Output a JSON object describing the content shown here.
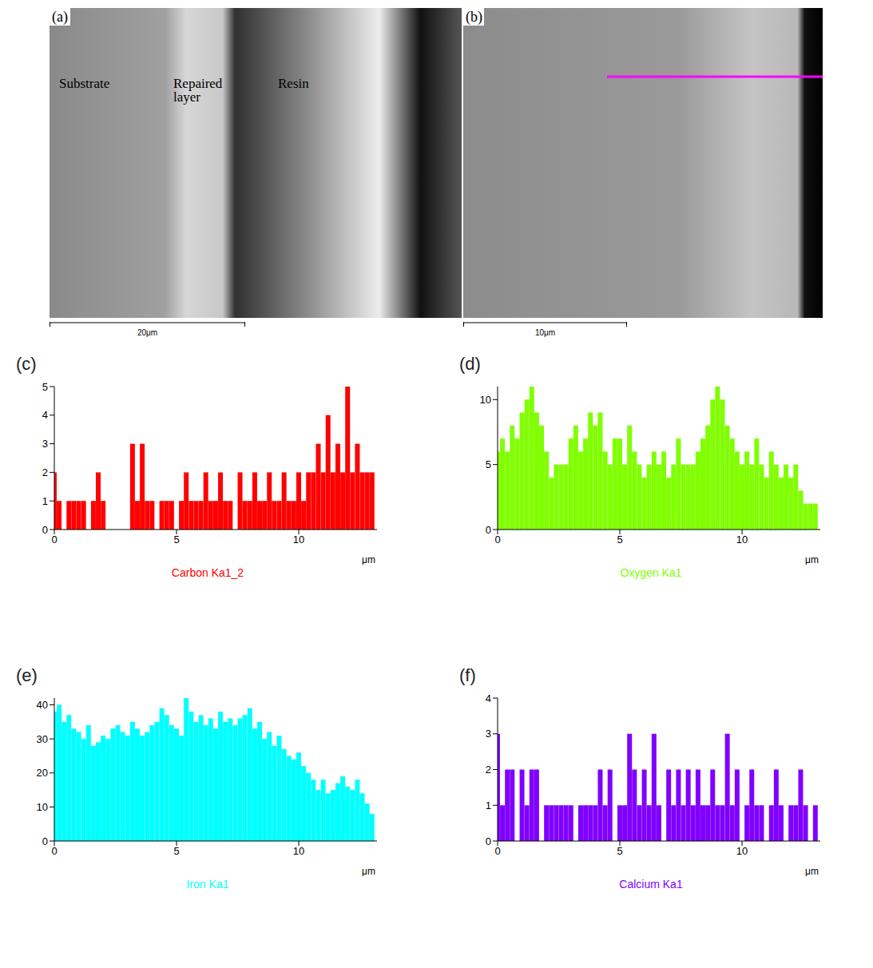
{
  "images": [
    {
      "label": "(a)",
      "regions": [
        "Substrate",
        "Repaired layer",
        "Resin"
      ],
      "scale_bar": "20μm"
    },
    {
      "label": "(b)",
      "scale_bar": "10μm"
    }
  ],
  "chart_data": [
    {
      "type": "bar",
      "label": "(c)",
      "title": "Carbon Ka1_2",
      "x_label": "μm",
      "color": "#ff0000",
      "xlim": [
        0,
        13.2
      ],
      "xticks": [
        0,
        5,
        10
      ],
      "ylim": [
        0,
        5
      ],
      "yticks": [
        0,
        1,
        2,
        3,
        4,
        5
      ],
      "x": [
        0,
        0.2,
        0.4,
        0.6,
        0.8,
        1,
        1.2,
        1.4,
        1.6,
        1.8,
        2,
        2.2,
        2.4,
        2.6,
        2.8,
        3,
        3.2,
        3.4,
        3.6,
        3.8,
        4,
        4.2,
        4.4,
        4.6,
        4.8,
        5,
        5.2,
        5.4,
        5.6,
        5.8,
        6,
        6.2,
        6.4,
        6.6,
        6.8,
        7,
        7.2,
        7.4,
        7.6,
        7.8,
        8,
        8.2,
        8.4,
        8.6,
        8.8,
        9,
        9.2,
        9.4,
        9.6,
        9.8,
        10,
        10.2,
        10.4,
        10.6,
        10.8,
        11,
        11.2,
        11.4,
        11.6,
        11.8,
        12,
        12.2,
        12.4,
        12.6,
        12.8,
        13
      ],
      "values": [
        2,
        1,
        0,
        1,
        1,
        1,
        1,
        0,
        1,
        2,
        1,
        0,
        0,
        0,
        0,
        0,
        3,
        1,
        3,
        1,
        1,
        0,
        1,
        1,
        1,
        0,
        1,
        2,
        1,
        1,
        1,
        2,
        1,
        1,
        2,
        1,
        1,
        0,
        2,
        1,
        1,
        2,
        1,
        1,
        2,
        1,
        1,
        2,
        1,
        1,
        2,
        1,
        2,
        2,
        3,
        2,
        4,
        2,
        3,
        2,
        5,
        2,
        3,
        2,
        2,
        2
      ]
    },
    {
      "type": "bar",
      "label": "(d)",
      "title": "Oxygen Ka1",
      "x_label": "μm",
      "color": "#80ff00",
      "xlim": [
        0,
        13.2
      ],
      "xticks": [
        0,
        5,
        10
      ],
      "ylim": [
        0,
        11
      ],
      "yticks": [
        0,
        5,
        10
      ],
      "x": [
        0,
        0.2,
        0.4,
        0.6,
        0.8,
        1,
        1.2,
        1.4,
        1.6,
        1.8,
        2,
        2.2,
        2.4,
        2.6,
        2.8,
        3,
        3.2,
        3.4,
        3.6,
        3.8,
        4,
        4.2,
        4.4,
        4.6,
        4.8,
        5,
        5.2,
        5.4,
        5.6,
        5.8,
        6,
        6.2,
        6.4,
        6.6,
        6.8,
        7,
        7.2,
        7.4,
        7.6,
        7.8,
        8,
        8.2,
        8.4,
        8.6,
        8.8,
        9,
        9.2,
        9.4,
        9.6,
        9.8,
        10,
        10.2,
        10.4,
        10.6,
        10.8,
        11,
        11.2,
        11.4,
        11.6,
        11.8,
        12,
        12.2,
        12.4,
        12.6,
        12.8,
        13
      ],
      "values": [
        6,
        7,
        6,
        8,
        7,
        9,
        10,
        11,
        9,
        8,
        6,
        4,
        5,
        5,
        5,
        7,
        8,
        6,
        7,
        9,
        8,
        9,
        6,
        5,
        7,
        7,
        5,
        8,
        6,
        5,
        4,
        5,
        6,
        5,
        6,
        4,
        5,
        7,
        5,
        5,
        5,
        6,
        7,
        8,
        10,
        11,
        10,
        8,
        7,
        6,
        5,
        6,
        5,
        7,
        5,
        4,
        6,
        5,
        4,
        5,
        4,
        5,
        3,
        2,
        2,
        2
      ]
    },
    {
      "type": "bar",
      "label": "(e)",
      "title": "Iron Ka1",
      "x_label": "μm",
      "color": "#00ffff",
      "xlim": [
        0,
        13.2
      ],
      "xticks": [
        0,
        5,
        10
      ],
      "ylim": [
        0,
        42
      ],
      "yticks": [
        0,
        10,
        20,
        30,
        40
      ],
      "x": [
        0,
        0.2,
        0.4,
        0.6,
        0.8,
        1,
        1.2,
        1.4,
        1.6,
        1.8,
        2,
        2.2,
        2.4,
        2.6,
        2.8,
        3,
        3.2,
        3.4,
        3.6,
        3.8,
        4,
        4.2,
        4.4,
        4.6,
        4.8,
        5,
        5.2,
        5.4,
        5.6,
        5.8,
        6,
        6.2,
        6.4,
        6.6,
        6.8,
        7,
        7.2,
        7.4,
        7.6,
        7.8,
        8,
        8.2,
        8.4,
        8.6,
        8.8,
        9,
        9.2,
        9.4,
        9.6,
        9.8,
        10,
        10.2,
        10.4,
        10.6,
        10.8,
        11,
        11.2,
        11.4,
        11.6,
        11.8,
        12,
        12.2,
        12.4,
        12.6,
        12.8,
        13
      ],
      "values": [
        38,
        40,
        35,
        37,
        33,
        32,
        30,
        34,
        28,
        29,
        31,
        30,
        33,
        34,
        32,
        31,
        35,
        33,
        31,
        32,
        34,
        35,
        39,
        37,
        34,
        33,
        31,
        42,
        38,
        35,
        37,
        34,
        36,
        33,
        38,
        35,
        36,
        34,
        36,
        37,
        39,
        33,
        35,
        30,
        32,
        28,
        31,
        27,
        25,
        24,
        26,
        22,
        20,
        18,
        15,
        18,
        14,
        15,
        17,
        19,
        16,
        15,
        18,
        14,
        11,
        8
      ]
    },
    {
      "type": "bar",
      "label": "(f)",
      "title": "Calcium Ka1",
      "x_label": "μm",
      "color": "#8000ff",
      "xlim": [
        0,
        13.2
      ],
      "xticks": [
        0,
        5,
        10
      ],
      "ylim": [
        0,
        4
      ],
      "yticks": [
        0,
        1,
        2,
        3,
        4
      ],
      "x": [
        0,
        0.2,
        0.4,
        0.6,
        0.8,
        1,
        1.2,
        1.4,
        1.6,
        1.8,
        2,
        2.2,
        2.4,
        2.6,
        2.8,
        3,
        3.2,
        3.4,
        3.6,
        3.8,
        4,
        4.2,
        4.4,
        4.6,
        4.8,
        5,
        5.2,
        5.4,
        5.6,
        5.8,
        6,
        6.2,
        6.4,
        6.6,
        6.8,
        7,
        7.2,
        7.4,
        7.6,
        7.8,
        8,
        8.2,
        8.4,
        8.6,
        8.8,
        9,
        9.2,
        9.4,
        9.6,
        9.8,
        10,
        10.2,
        10.4,
        10.6,
        10.8,
        11,
        11.2,
        11.4,
        11.6,
        11.8,
        12,
        12.2,
        12.4,
        12.6,
        12.8,
        13
      ],
      "values": [
        3,
        1,
        2,
        2,
        0,
        2,
        1,
        2,
        2,
        0,
        1,
        1,
        1,
        1,
        1,
        1,
        0,
        1,
        1,
        1,
        1,
        2,
        1,
        2,
        0,
        1,
        1,
        3,
        2,
        1,
        2,
        1,
        3,
        1,
        0,
        2,
        1,
        2,
        1,
        2,
        1,
        2,
        1,
        1,
        2,
        1,
        1,
        3,
        1,
        2,
        0,
        1,
        2,
        1,
        1,
        0,
        1,
        2,
        1,
        0,
        1,
        1,
        2,
        1,
        0,
        1
      ]
    }
  ]
}
